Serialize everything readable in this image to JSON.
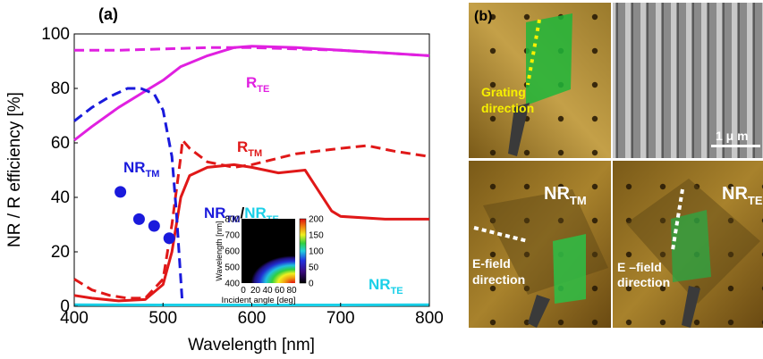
{
  "panel_a": {
    "label": "(a)",
    "xlabel": "Wavelength [nm]",
    "ylabel": "NR / R efficiency [%]",
    "xticks": [
      "400",
      "500",
      "600",
      "700",
      "800"
    ],
    "yticks": [
      "0",
      "20",
      "40",
      "60",
      "80",
      "100"
    ],
    "annotations": {
      "rte_main": "R",
      "rte_sub": "TE",
      "rtm_main": "R",
      "rtm_sub": "TM",
      "nrtm_main": "NR",
      "nrtm_sub": "TM",
      "nrte_main": "NR",
      "nrte_sub": "TE"
    },
    "inset": {
      "title_left_main": "NR",
      "title_left_sub": "TM",
      "title_slash": "/",
      "title_right_main": "NR",
      "title_right_sub": "TE",
      "ylabel": "Wavelength [nm]",
      "xlabel": "Incident angle [deg]",
      "yticks": [
        "400",
        "500",
        "600",
        "700",
        "800"
      ],
      "xticks": [
        "0",
        "20",
        "40",
        "60",
        "80"
      ],
      "cbar_ticks": [
        "0",
        "50",
        "100",
        "150",
        "200"
      ]
    },
    "colors": {
      "magenta": "#e020e0",
      "red": "#e01818",
      "blue": "#1a1adc",
      "cyan": "#1ad0e8"
    }
  },
  "panel_b": {
    "label": "(b)",
    "grating_label_1": "Grating",
    "grating_label_2": "direction",
    "scale_label": "1 μ m",
    "nrtm_main": "NR",
    "nrtm_sub": "TM",
    "nrte_main": "NR",
    "nrte_sub": "TE",
    "efield_1_line1": "E-field",
    "efield_1_line2": "direction",
    "efield_2_line1": "E –field",
    "efield_2_line2": "direction"
  },
  "chart_data": {
    "type": "line",
    "xlabel": "Wavelength [nm]",
    "ylabel": "NR / R efficiency [%]",
    "xlim": [
      400,
      800
    ],
    "ylim": [
      0,
      100
    ],
    "grid": false,
    "series": [
      {
        "name": "R_TE",
        "style": "solid",
        "color": "#e020e0",
        "x": [
          400,
          420,
          450,
          480,
          500,
          520,
          550,
          580,
          600,
          650,
          700,
          750,
          800
        ],
        "y": [
          61,
          66,
          73,
          79,
          83,
          88,
          92,
          95,
          95.5,
          95,
          94,
          93,
          92
        ]
      },
      {
        "name": "R_TE",
        "style": "dashed",
        "color": "#e020e0",
        "x": [
          400,
          450,
          500,
          550,
          600,
          650,
          700,
          750,
          800
        ],
        "y": [
          94,
          94,
          94.5,
          95,
          95,
          94.5,
          94,
          93,
          92
        ]
      },
      {
        "name": "R_TM",
        "style": "solid",
        "color": "#e01818",
        "x": [
          400,
          420,
          450,
          480,
          500,
          510,
          520,
          530,
          550,
          580,
          600,
          630,
          660,
          670,
          690,
          700,
          750,
          800
        ],
        "y": [
          4,
          3,
          2,
          2.5,
          8,
          20,
          40,
          48,
          51,
          52,
          51,
          49,
          50,
          45,
          35,
          33,
          32,
          32
        ]
      },
      {
        "name": "R_TM",
        "style": "dashed",
        "color": "#e01818",
        "x": [
          400,
          420,
          440,
          460,
          480,
          500,
          510,
          520,
          522,
          530,
          550,
          580,
          600,
          650,
          700,
          730,
          760,
          800
        ],
        "y": [
          10,
          6,
          4,
          3,
          3,
          10,
          30,
          55,
          61,
          58,
          53,
          51,
          52,
          56,
          58,
          59,
          57,
          55
        ]
      },
      {
        "name": "NR_TM",
        "style": "dashed",
        "color": "#1a1adc",
        "x": [
          400,
          420,
          440,
          460,
          475,
          490,
          500,
          510,
          515,
          520,
          522
        ],
        "y": [
          68,
          73,
          77,
          80,
          80,
          78,
          72,
          55,
          35,
          10,
          0
        ]
      },
      {
        "name": "NR_TM",
        "style": "markers",
        "color": "#1a1adc",
        "x": [
          452,
          473,
          490,
          507
        ],
        "y": [
          42,
          32,
          29.5,
          25
        ]
      },
      {
        "name": "NR_TE",
        "style": "solid",
        "color": "#1ad0e8",
        "x": [
          400,
          500,
          600,
          700,
          800
        ],
        "y": [
          0.6,
          0.5,
          0.5,
          0.5,
          0.6
        ]
      }
    ]
  }
}
